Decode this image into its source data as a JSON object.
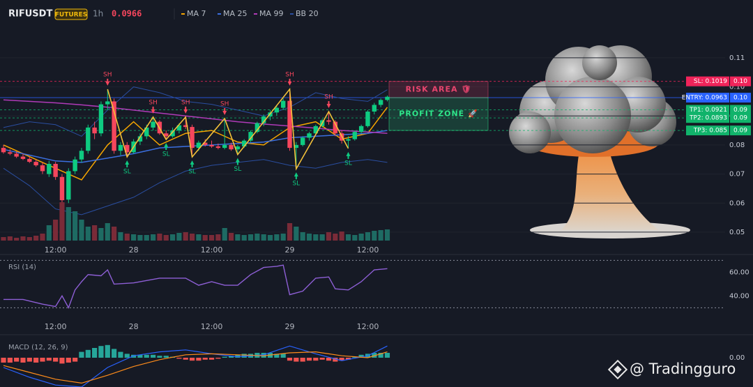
{
  "header": {
    "symbol": "RIFUSDT",
    "badge": "FUTURES",
    "interval": "1h",
    "price": 0.0966
  },
  "watermark": "@ Tradingguro",
  "chart_data": [
    {
      "type": "candlestick",
      "up_color": "#0ecb81",
      "down_color": "#f6465d",
      "categories": [
        null,
        null,
        null,
        null,
        null,
        null,
        null,
        null,
        "12:00",
        null,
        null,
        null,
        null,
        null,
        null,
        null,
        null,
        null,
        null,
        null,
        "28",
        null,
        null,
        null,
        null,
        null,
        null,
        null,
        null,
        null,
        null,
        null,
        "12:00",
        null,
        null,
        null,
        null,
        null,
        null,
        null,
        null,
        null,
        null,
        null,
        "29",
        null,
        null,
        null,
        null,
        null,
        null,
        null,
        null,
        null,
        null,
        null,
        "12:00",
        null,
        null,
        null
      ],
      "open": [
        0.079,
        0.0775,
        0.077,
        0.076,
        0.0752,
        0.0742,
        0.073,
        0.07,
        0.0735,
        0.069,
        0.0612,
        0.071,
        0.075,
        0.078,
        0.086,
        0.084,
        0.094,
        0.095,
        0.078,
        0.08,
        0.0775,
        0.0812,
        0.083,
        0.086,
        0.088,
        0.084,
        0.083,
        0.085,
        0.0868,
        0.0862,
        0.079,
        0.0808,
        0.08,
        0.0795,
        0.079,
        0.08,
        0.0785,
        0.0795,
        0.0815,
        0.0845,
        0.0875,
        0.0898,
        0.0912,
        0.0928,
        0.0952,
        0.079,
        0.08,
        0.0825,
        0.084,
        0.0865,
        0.0885,
        0.088,
        0.084,
        0.0815,
        0.082,
        0.0845,
        0.0865,
        0.0915,
        0.0938,
        0.0955
      ],
      "high": [
        0.08,
        0.0785,
        0.0778,
        0.077,
        0.076,
        0.075,
        0.074,
        0.0745,
        0.0742,
        0.07,
        0.072,
        0.076,
        0.079,
        0.087,
        0.088,
        0.095,
        0.0992,
        0.096,
        0.081,
        0.081,
        0.082,
        0.084,
        0.087,
        0.0896,
        0.0885,
        0.085,
        0.086,
        0.0875,
        0.0896,
        0.087,
        0.0815,
        0.082,
        0.0815,
        0.0805,
        0.0891,
        0.0808,
        0.08,
        0.082,
        0.085,
        0.088,
        0.0905,
        0.092,
        0.0935,
        0.096,
        0.0992,
        0.081,
        0.083,
        0.0845,
        0.087,
        0.089,
        0.0915,
        0.0885,
        0.085,
        0.083,
        0.085,
        0.087,
        0.092,
        0.0945,
        0.096,
        0.097
      ],
      "low": [
        0.077,
        0.0765,
        0.0755,
        0.0748,
        0.0738,
        0.0725,
        0.07,
        0.069,
        0.068,
        0.059,
        0.06,
        0.07,
        0.074,
        0.077,
        0.082,
        0.083,
        0.092,
        0.077,
        0.0765,
        0.0759,
        0.077,
        0.08,
        0.082,
        0.085,
        0.0835,
        0.0819,
        0.0825,
        0.084,
        0.0855,
        0.0759,
        0.078,
        0.0795,
        0.079,
        0.0785,
        0.0785,
        0.078,
        0.0767,
        0.079,
        0.081,
        0.084,
        0.0865,
        0.0885,
        0.09,
        0.092,
        0.078,
        0.0718,
        0.0795,
        0.0815,
        0.0835,
        0.086,
        0.087,
        0.083,
        0.0805,
        0.0788,
        0.0815,
        0.084,
        0.086,
        0.0905,
        0.093,
        0.095
      ],
      "close": [
        0.0775,
        0.077,
        0.076,
        0.0752,
        0.0742,
        0.073,
        0.071,
        0.0735,
        0.069,
        0.061,
        0.071,
        0.075,
        0.078,
        0.086,
        0.084,
        0.094,
        0.095,
        0.078,
        0.08,
        0.0775,
        0.0812,
        0.083,
        0.086,
        0.088,
        0.084,
        0.083,
        0.085,
        0.0868,
        0.0862,
        0.079,
        0.0808,
        0.08,
        0.0795,
        0.079,
        0.08,
        0.0785,
        0.0795,
        0.0815,
        0.0845,
        0.0875,
        0.0898,
        0.0912,
        0.0928,
        0.0952,
        0.079,
        0.08,
        0.0825,
        0.084,
        0.0865,
        0.0885,
        0.088,
        0.084,
        0.0815,
        0.082,
        0.0845,
        0.0865,
        0.0915,
        0.0938,
        0.0955,
        0.0966
      ],
      "ylim": [
        0.0471,
        0.1203
      ],
      "yticks": [
        0.05,
        0.06,
        0.07,
        0.08,
        0.09,
        {
          "value": 0.1,
          "label": "0.10"
        },
        0.11
      ],
      "grid": true,
      "series": [
        {
          "name": "MA 7",
          "color": "#f7a600",
          "x": [
            0,
            4,
            8,
            12,
            16,
            20,
            24,
            28,
            32,
            36,
            40,
            44,
            48,
            52,
            56,
            59
          ],
          "values": [
            0.08,
            0.076,
            0.072,
            0.068,
            0.08,
            0.088,
            0.08,
            0.084,
            0.085,
            0.081,
            0.08,
            0.086,
            0.088,
            0.082,
            0.084,
            0.093
          ]
        },
        {
          "name": "MA 25",
          "color": "#3b6fe0",
          "x": [
            0,
            4,
            8,
            12,
            16,
            20,
            24,
            28,
            32,
            36,
            40,
            44,
            48,
            52,
            56,
            59
          ],
          "values": [
            0.0785,
            0.0765,
            0.0745,
            0.074,
            0.0755,
            0.077,
            0.079,
            0.0795,
            0.08,
            0.0805,
            0.081,
            0.0825,
            0.083,
            0.0835,
            0.084,
            0.085
          ]
        },
        {
          "name": "MA 99",
          "color": "#b03ab8",
          "x": [
            0,
            4,
            8,
            12,
            16,
            20,
            24,
            28,
            32,
            36,
            40,
            44,
            48,
            52,
            56,
            59
          ],
          "values": [
            0.0955,
            0.095,
            0.0945,
            0.0938,
            0.093,
            0.092,
            0.091,
            0.09,
            0.089,
            0.088,
            0.0872,
            0.0865,
            0.0858,
            0.085,
            0.0845,
            0.084
          ]
        },
        {
          "name": "BB 20",
          "color": "#2a4ea0",
          "x": [
            0,
            4,
            8,
            12,
            16,
            20,
            24,
            28,
            32,
            36,
            40,
            44,
            48,
            52,
            56,
            59
          ],
          "values": [
            0.086,
            0.088,
            0.087,
            0.083,
            0.092,
            0.1,
            0.098,
            0.095,
            0.094,
            0.092,
            0.09,
            0.093,
            0.098,
            0.096,
            0.095,
            0.099
          ],
          "lower": [
            0.072,
            0.066,
            0.058,
            0.056,
            0.059,
            0.062,
            0.067,
            0.071,
            0.073,
            0.074,
            0.075,
            0.073,
            0.072,
            0.074,
            0.075,
            0.074
          ]
        }
      ],
      "annotations": [
        {
          "text": "SH",
          "x": 16,
          "value": 0.0992
        },
        {
          "text": "SL",
          "x": 19,
          "value": 0.0759
        },
        {
          "text": "SH",
          "x": 23,
          "value": 0.0896
        },
        {
          "text": "SL",
          "x": 25,
          "value": 0.0819
        },
        {
          "text": "SH",
          "x": 28,
          "value": 0.0896
        },
        {
          "text": "SL",
          "x": 29,
          "value": 0.0759
        },
        {
          "text": "SH",
          "x": 34,
          "value": 0.0891
        },
        {
          "text": "SL",
          "x": 36,
          "value": 0.0767
        },
        {
          "text": "SH",
          "x": 44,
          "value": 0.0992
        },
        {
          "text": "SL",
          "x": 45,
          "value": 0.0718
        },
        {
          "text": "SH",
          "x": 50,
          "value": 0.0915
        },
        {
          "text": "SL",
          "x": 53,
          "value": 0.0788
        }
      ],
      "levels": [
        {
          "label": "SL: 0.1019",
          "value": 0.1019,
          "axis_label": "0.10",
          "color": "#f0245a"
        },
        {
          "label": "ENTRY: 0.0963",
          "value": 0.0963,
          "axis_label": "0.10",
          "color": "#2962ff"
        },
        {
          "label": "TP1: 0.0921",
          "value": 0.0921,
          "axis_label": "0.09",
          "color": "#11b36b"
        },
        {
          "label": "TP2: 0.0893",
          "value": 0.0893,
          "axis_label": "0.09",
          "color": "#11b36b"
        },
        {
          "label": "TP3: 0.085",
          "value": 0.085,
          "axis_label": "0.09",
          "color": "#11b36b"
        }
      ],
      "zones": [
        {
          "text": "RISK AREA 🛡",
          "from": 0.1019,
          "to": 0.0963,
          "color": "#e8456e"
        },
        {
          "text": "PROFIT ZONE 🚀",
          "from": 0.0963,
          "to": 0.085,
          "color": "#2ee68a"
        }
      ]
    },
    {
      "type": "bar",
      "up_color": "#1e6b63",
      "down_color": "#7a2b38",
      "ylim": [
        0,
        60
      ],
      "values": [
        5,
        6,
        4,
        6,
        5,
        7,
        10,
        22,
        30,
        55,
        48,
        42,
        30,
        20,
        22,
        18,
        25,
        20,
        12,
        10,
        9,
        8,
        8,
        9,
        10,
        8,
        9,
        11,
        12,
        10,
        9,
        8,
        8,
        9,
        18,
        11,
        9,
        8,
        9,
        10,
        9,
        8,
        9,
        10,
        25,
        20,
        12,
        10,
        9,
        9,
        12,
        10,
        13,
        9,
        8,
        10,
        12,
        14,
        15,
        16
      ]
    },
    {
      "type": "line",
      "title": "RSI (14)",
      "ylim": [
        19,
        72
      ],
      "yticks": [
        {
          "value": 40,
          "label": "40.00"
        },
        {
          "value": 60,
          "label": "60.00"
        }
      ],
      "bands": [
        30,
        70
      ],
      "series": [
        {
          "color": "#8e5fd6",
          "x": [
            0,
            3,
            6,
            8,
            9,
            10,
            11,
            12,
            13,
            15,
            16,
            17,
            20,
            24,
            28,
            30,
            32,
            34,
            36,
            38,
            40,
            42,
            43,
            44,
            46,
            48,
            50,
            51,
            53,
            55,
            57,
            59
          ],
          "values": [
            37,
            37,
            33,
            31,
            40,
            30,
            45,
            52,
            58,
            57,
            62,
            50,
            51,
            55,
            55,
            49,
            52,
            49,
            49,
            58,
            64,
            65,
            66,
            41,
            44,
            55,
            56,
            46,
            45,
            52,
            62,
            63
          ]
        }
      ]
    },
    {
      "type": "bar",
      "title": "MACD (12, 26, 9)",
      "up_color": "#26a69a",
      "down_color": "#ef5350",
      "ylim": [
        -0.003,
        0.002
      ],
      "yticks": [
        {
          "value": 0,
          "label": "0.00"
        }
      ],
      "values": [
        -0.0005,
        -0.0005,
        -0.0004,
        -0.0005,
        -0.0004,
        -0.0005,
        -0.0004,
        -0.0003,
        -0.0004,
        -0.0006,
        -0.0005,
        -0.0004,
        0.0006,
        0.0008,
        0.001,
        0.0012,
        0.0013,
        0.0009,
        0.0006,
        0.0004,
        0.0003,
        0.0003,
        0.0003,
        0.0003,
        0.0002,
        0.0002,
        0.0001,
        -0.0001,
        -0.0002,
        -0.0003,
        -0.0003,
        -0.0002,
        -0.0002,
        -0.0001,
        0.0001,
        0.0002,
        0.0003,
        0.0004,
        0.0004,
        0.0005,
        0.0005,
        0.0005,
        0.0004,
        0.0004,
        -0.0003,
        -0.0004,
        -0.0004,
        -0.0003,
        -0.0003,
        -0.0002,
        -0.0003,
        -0.0004,
        -0.0003,
        -0.0002,
        0.0001,
        0.0003,
        0.0004,
        0.0005,
        0.0005,
        0.0005
      ],
      "series": [
        {
          "color": "#2962ff",
          "x": [
            0,
            4,
            8,
            12,
            16,
            20,
            24,
            28,
            32,
            36,
            40,
            44,
            48,
            52,
            56,
            59
          ],
          "values": [
            -0.001,
            -0.002,
            -0.0028,
            -0.003,
            -0.001,
            0.0002,
            0.0006,
            0.0008,
            0.0004,
            0.0001,
            0.0003,
            0.0012,
            0.0004,
            -0.0003,
            0.0002,
            0.0012
          ]
        },
        {
          "color": "#ff8c1a",
          "x": [
            0,
            4,
            8,
            12,
            16,
            20,
            24,
            28,
            32,
            36,
            40,
            44,
            48,
            52,
            56,
            59
          ],
          "values": [
            -0.0008,
            -0.0015,
            -0.0022,
            -0.0026,
            -0.0018,
            -0.0009,
            -0.0002,
            0.0003,
            0.0004,
            0.0003,
            0.0002,
            0.0005,
            0.0006,
            0.0002,
            0,
            0.0006
          ]
        }
      ]
    }
  ]
}
